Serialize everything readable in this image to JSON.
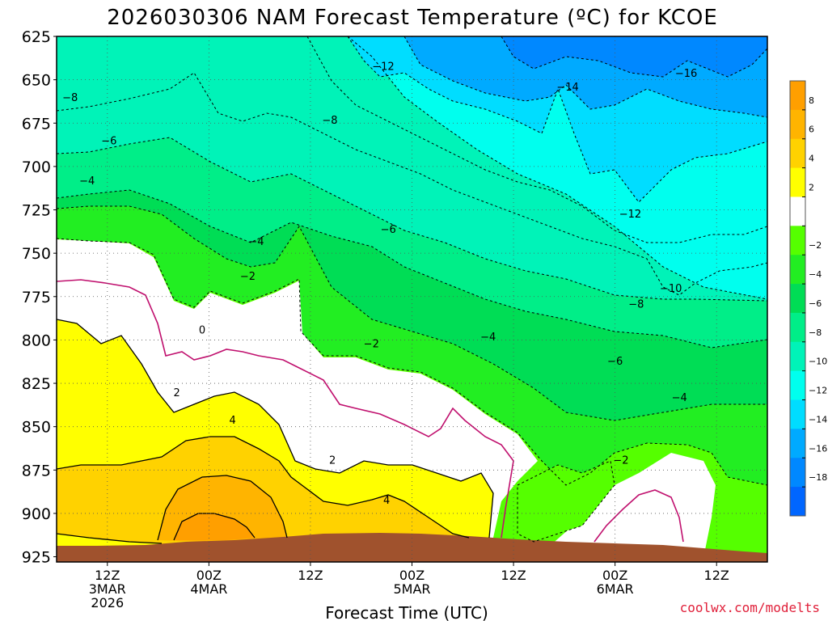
{
  "title": "2026030306 NAM Forecast Temperature (ºC) for KCOE",
  "x_axis_label": "Forecast Time (UTC)",
  "credit": "coolwx.com/modelts",
  "chart_data": {
    "type": "heatmap",
    "title": "2026030306 NAM Forecast Temperature (ºC) for KCOE",
    "xlabel": "Forecast Time (UTC)",
    "ylabel": "",
    "y_axis_unit": "hPa",
    "y_ticks": [
      625,
      650,
      675,
      700,
      725,
      750,
      775,
      800,
      825,
      850,
      875,
      900,
      925
    ],
    "y_range": [
      625,
      928
    ],
    "x_ticks": [
      {
        "label": "12Z",
        "sub1": "3MAR",
        "sub2": "2026",
        "hour": 6
      },
      {
        "label": "00Z",
        "sub1": "4MAR",
        "sub2": "",
        "hour": 18
      },
      {
        "label": "12Z",
        "sub1": "",
        "sub2": "",
        "hour": 30
      },
      {
        "label": "00Z",
        "sub1": "5MAR",
        "sub2": "",
        "hour": 42
      },
      {
        "label": "12Z",
        "sub1": "",
        "sub2": "",
        "hour": 54
      },
      {
        "label": "00Z",
        "sub1": "6MAR",
        "sub2": "",
        "hour": 66
      },
      {
        "label": "12Z",
        "sub1": "",
        "sub2": "",
        "hour": 78
      }
    ],
    "x_range_hours": [
      0,
      84
    ],
    "colorbar": {
      "levels": [
        "8",
        "6",
        "4",
        "2",
        "",
        "−2",
        "−4",
        "−6",
        "−8",
        "−10",
        "−12",
        "−14",
        "−16",
        "−18"
      ],
      "colors": [
        "#ff9f00",
        "#ffb400",
        "#ffd200",
        "#ffff00",
        "#ffffff",
        "#55ff00",
        "#22ee22",
        "#00dd55",
        "#00ee88",
        "#00f3b8",
        "#00ffee",
        "#00ddff",
        "#00aaff",
        "#0088ff",
        "#0066ff"
      ]
    },
    "contour_labels": [
      {
        "text": "−16",
        "hour": 74.4,
        "p": 646
      },
      {
        "text": "−14",
        "hour": 60.4,
        "p": 654
      },
      {
        "text": "−12",
        "hour": 38.6,
        "p": 642
      },
      {
        "text": "−12",
        "hour": 67.8,
        "p": 727
      },
      {
        "text": "−10",
        "hour": 72.6,
        "p": 770
      },
      {
        "text": "−8",
        "hour": 1.6,
        "p": 660
      },
      {
        "text": "−8",
        "hour": 32.3,
        "p": 673
      },
      {
        "text": "−8",
        "hour": 68.5,
        "p": 779
      },
      {
        "text": "−6",
        "hour": 6.2,
        "p": 685
      },
      {
        "text": "−6",
        "hour": 39.2,
        "p": 736
      },
      {
        "text": "−6",
        "hour": 66.0,
        "p": 812
      },
      {
        "text": "−4",
        "hour": 3.6,
        "p": 708
      },
      {
        "text": "−4",
        "hour": 23.6,
        "p": 743
      },
      {
        "text": "−4",
        "hour": 51.0,
        "p": 798
      },
      {
        "text": "−4",
        "hour": 73.6,
        "p": 833
      },
      {
        "text": "−2",
        "hour": 22.6,
        "p": 763
      },
      {
        "text": "−2",
        "hour": 37.2,
        "p": 802
      },
      {
        "text": "−2",
        "hour": 66.7,
        "p": 869
      },
      {
        "text": "0",
        "hour": 17.2,
        "p": 794
      },
      {
        "text": "2",
        "hour": 14.2,
        "p": 830
      },
      {
        "text": "2",
        "hour": 32.6,
        "p": 869
      },
      {
        "text": "4",
        "hour": 20.8,
        "p": 846
      },
      {
        "text": "4",
        "hour": 39.0,
        "p": 892
      }
    ]
  }
}
